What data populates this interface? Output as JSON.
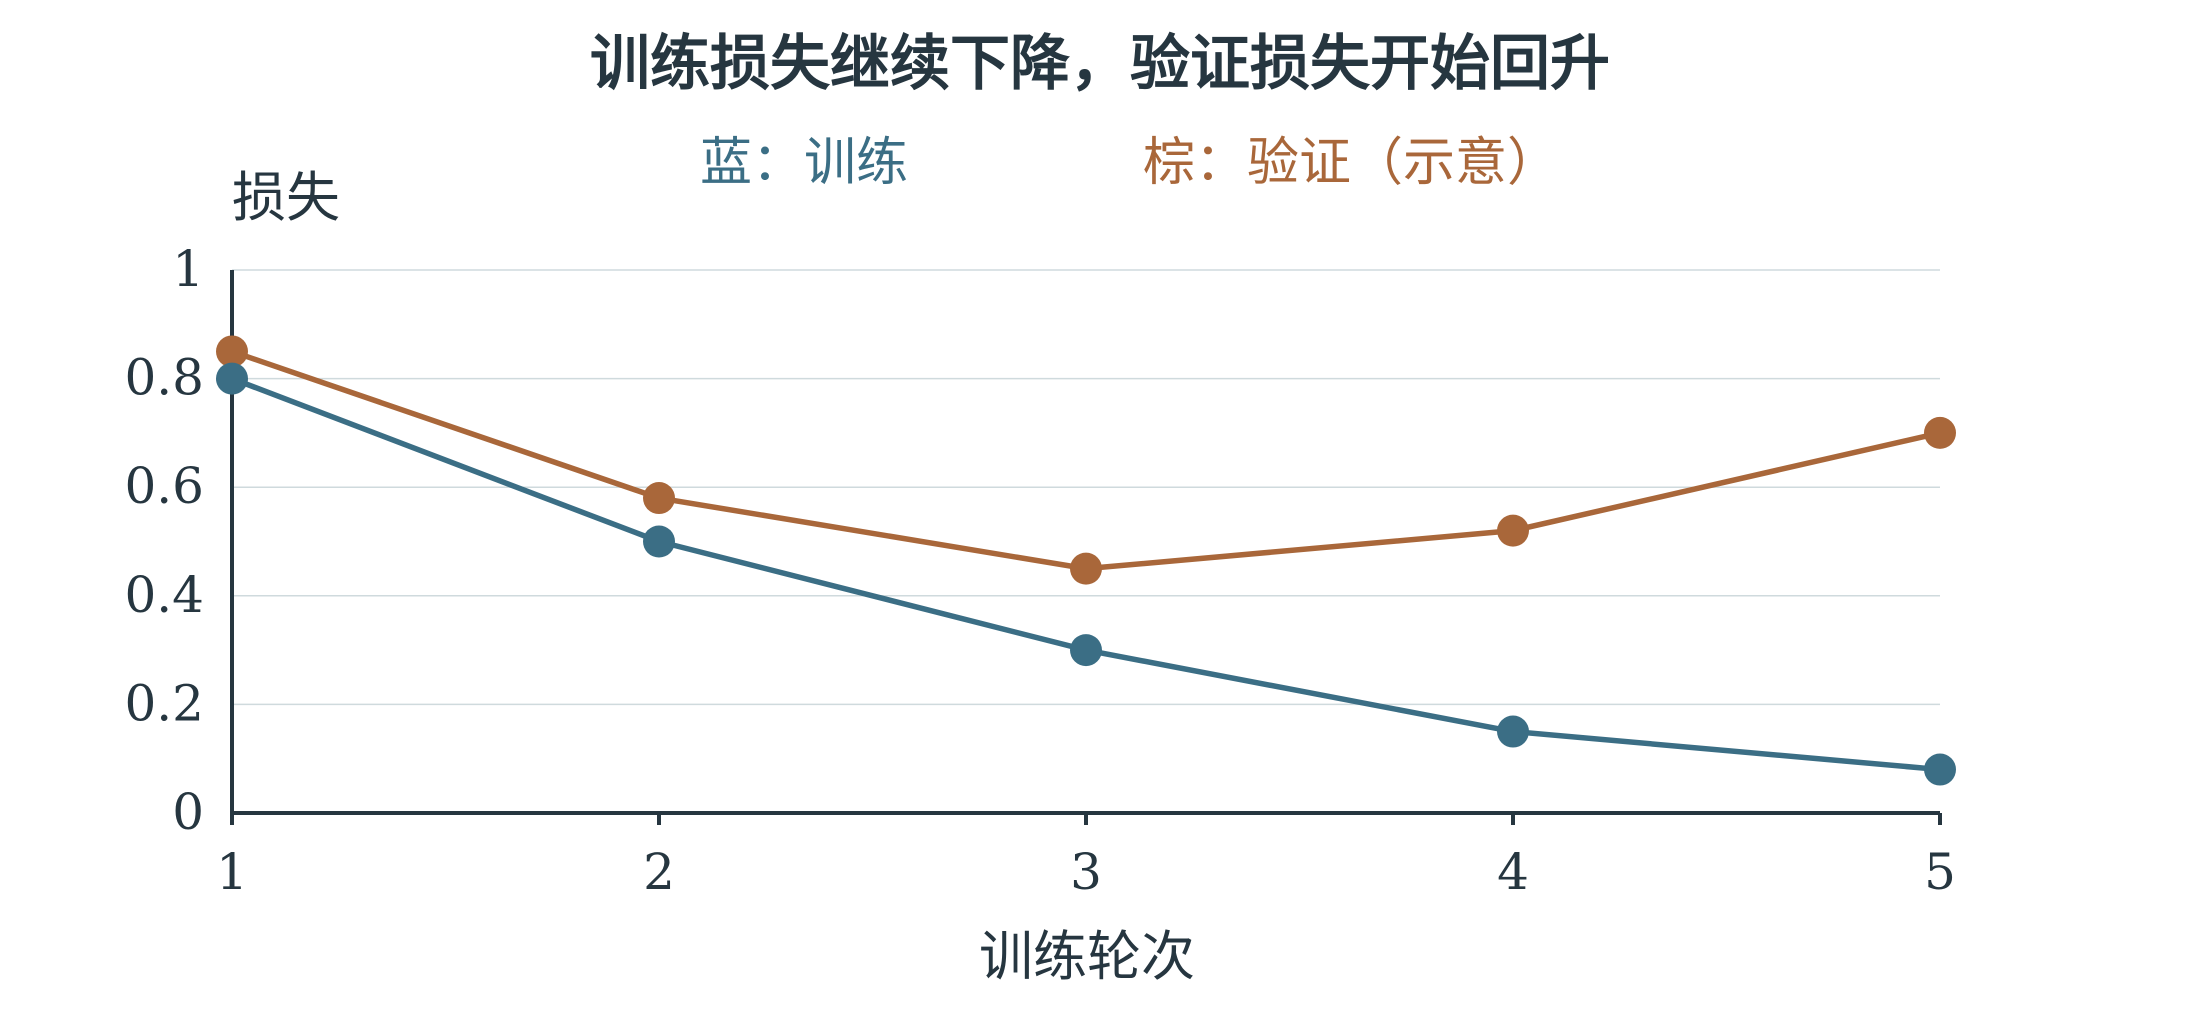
{
  "colors": {
    "text": "#263640",
    "grid": "#cfdadd",
    "train": "#3b6e85",
    "val": "#a9673a"
  },
  "chart_data": {
    "type": "line",
    "title": "训练损失继续下降，验证损失开始回升",
    "legend": [
      {
        "label": "蓝：训练",
        "color": "#3b6e85"
      },
      {
        "label": "棕：验证（示意）",
        "color": "#a9673a"
      }
    ],
    "legend_position": "top-center",
    "xlabel": "训练轮次",
    "ylabel": "损失",
    "x": [
      1,
      2,
      3,
      4,
      5
    ],
    "x_tick_labels": [
      "1",
      "2",
      "3",
      "4",
      "5"
    ],
    "y_ticks": [
      0,
      0.2,
      0.4,
      0.6,
      0.8,
      1
    ],
    "y_tick_labels": [
      "0",
      "0.2",
      "0.4",
      "0.6",
      "0.8",
      "1"
    ],
    "ylim": [
      0,
      1
    ],
    "xlim": [
      1,
      5
    ],
    "grid": true,
    "series": [
      {
        "key": "train",
        "values": [
          0.8,
          0.5,
          0.3,
          0.15,
          0.08
        ],
        "color": "#3b6e85"
      },
      {
        "key": "val",
        "values": [
          0.85,
          0.58,
          0.45,
          0.52,
          0.7
        ],
        "color": "#a9673a"
      }
    ]
  }
}
